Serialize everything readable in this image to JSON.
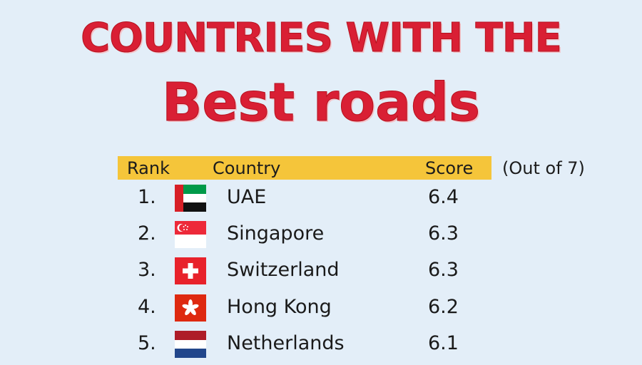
{
  "title": {
    "line1": "COUNTRIES WITH THE",
    "line2": "Best roads"
  },
  "chart_data": {
    "type": "table",
    "columns": [
      "Rank",
      "Country",
      "Score"
    ],
    "score_note": "(Out of 7)",
    "rows": [
      {
        "rank": "1.",
        "country": "UAE",
        "score": "6.4",
        "flag": "uae-flag-icon"
      },
      {
        "rank": "2.",
        "country": "Singapore",
        "score": "6.3",
        "flag": "singapore-flag-icon"
      },
      {
        "rank": "3.",
        "country": "Switzerland",
        "score": "6.3",
        "flag": "switzerland-flag-icon"
      },
      {
        "rank": "4.",
        "country": "Hong Kong",
        "score": "6.2",
        "flag": "hong-kong-flag-icon"
      },
      {
        "rank": "5.",
        "country": "Netherlands",
        "score": "6.1",
        "flag": "netherlands-flag-icon"
      }
    ]
  },
  "colors": {
    "title": "#d91f34",
    "header_band": "#f5c53a",
    "background": "#e3eef8"
  }
}
